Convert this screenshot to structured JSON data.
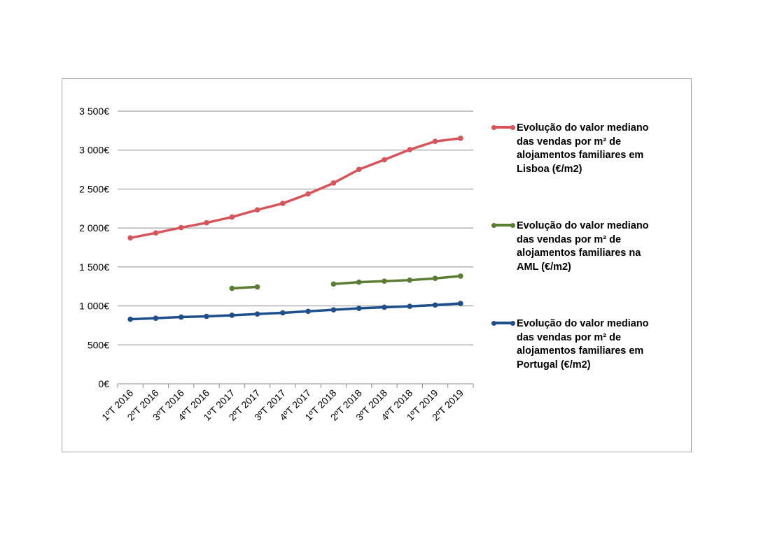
{
  "chart_data": {
    "type": "line",
    "categories": [
      "1ºT 2016",
      "2ºT 2016",
      "3ºT 2016",
      "4ºT 2016",
      "1ºT 2017",
      "2ºT 2017",
      "3ºT 2017",
      "4ºT 2017",
      "1ºT 2018",
      "2ºT 2018",
      "3ºT 2018",
      "4ºT 2018",
      "1ºT 2019",
      "2ºT 2019"
    ],
    "ylim": [
      0,
      3500
    ],
    "yticks": [
      0,
      500,
      1000,
      1500,
      2000,
      2500,
      3000,
      3500
    ],
    "ytick_labels": [
      "0€",
      "500€",
      "1 000€",
      "1 500€",
      "2 000€",
      "2 500€",
      "3 000€",
      "3 500€"
    ],
    "grid": true,
    "legend_position": "right",
    "series": [
      {
        "name": "Evolução do valor mediano das vendas por m² de alojamentos familiares em Lisboa (€/m2)",
        "color": "#d9545a",
        "values": [
          1873,
          1937,
          2005,
          2067,
          2141,
          2233,
          2316,
          2438,
          2577,
          2752,
          2876,
          3006,
          3112,
          3152
        ]
      },
      {
        "name": "Evolução do valor mediano das vendas por m² de alojamentos familiares na AML (€/m2)",
        "color": "#5b7d34",
        "values": [
          null,
          null,
          null,
          null,
          1226,
          1244,
          null,
          null,
          1281,
          1305,
          1318,
          1331,
          1353,
          1383
        ]
      },
      {
        "name": "Evolução do valor mediano das vendas por m² de alojamentos familiares em Portugal (€/m2)",
        "color": "#1f4f8a",
        "values": [
          829,
          842,
          857,
          866,
          880,
          896,
          911,
          931,
          950,
          969,
          983,
          995,
          1011,
          1032
        ]
      }
    ]
  },
  "legend": [
    {
      "text": "Evolução do valor mediano\ndas vendas por m² de\nalojamentos familiares em\nLisboa (€/m2)"
    },
    {
      "text": "Evolução do valor mediano\ndas vendas por m² de\nalojamentos familiares na\nAML (€/m2)"
    },
    {
      "text": "Evolução do valor mediano\ndas vendas por m² de\nalojamentos familiares em\nPortugal (€/m2)"
    }
  ]
}
